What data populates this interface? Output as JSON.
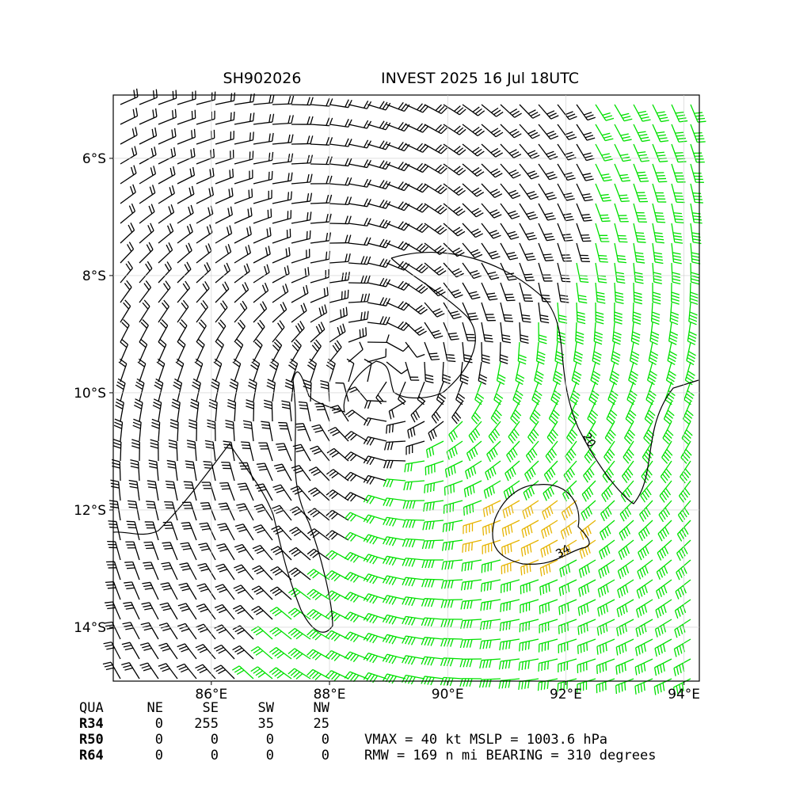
{
  "map": {
    "title_left": "SH902026",
    "title_right": "INVEST 2025 16 Jul 18UTC",
    "xlim": [
      84.34,
      94.26
    ],
    "ylim": [
      -14.92,
      -4.92
    ],
    "xticks": [
      {
        "value": 86,
        "label": "86°E"
      },
      {
        "value": 88,
        "label": "88°E"
      },
      {
        "value": 90,
        "label": "90°E"
      },
      {
        "value": 92,
        "label": "92°E"
      },
      {
        "value": 94,
        "label": "94°E"
      }
    ],
    "yticks": [
      {
        "value": -6,
        "label": "6°S"
      },
      {
        "value": -8,
        "label": "8°S"
      },
      {
        "value": -10,
        "label": "10°S"
      },
      {
        "value": -12,
        "label": "12°S"
      },
      {
        "value": -14,
        "label": "14°S"
      }
    ],
    "contour_labels": [
      "20",
      "34"
    ]
  },
  "table": {
    "header": [
      "QUA",
      "NE",
      "SE",
      "SW",
      "NW"
    ],
    "rows": [
      [
        "R34",
        "0",
        "255",
        "35",
        "25"
      ],
      [
        "R50",
        "0",
        "0",
        "0",
        "0"
      ],
      [
        "R64",
        "0",
        "0",
        "0",
        "0"
      ]
    ]
  },
  "summary": [
    "VMAX =  40 kt MSLP = 1003.6 hPa",
    "RMW = 169 n mi BEARING = 310 degrees"
  ]
}
